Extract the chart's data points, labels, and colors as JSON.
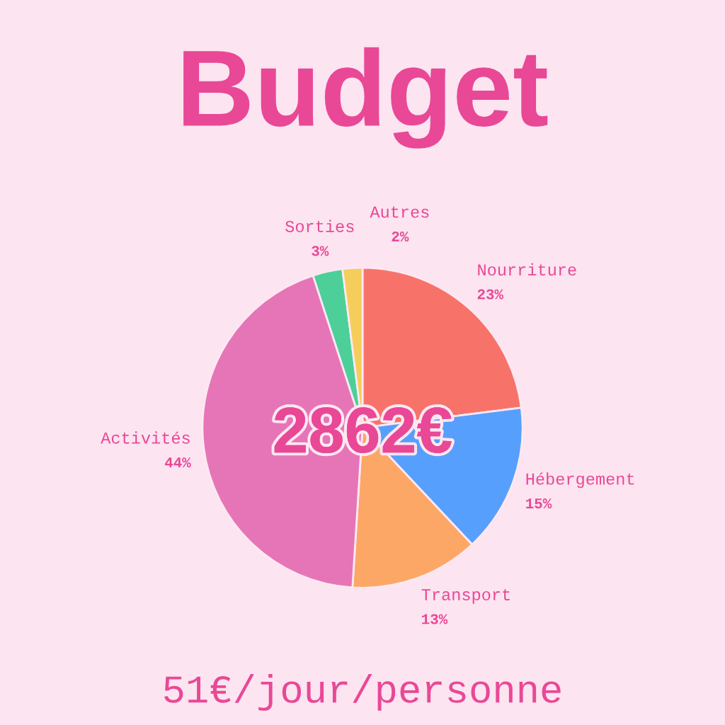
{
  "chart_data": {
    "type": "pie",
    "title": "Budget",
    "categories": [
      "Nourriture",
      "Hébergement",
      "Transport",
      "Activités",
      "Sorties",
      "Autres"
    ],
    "values": [
      23,
      15,
      13,
      44,
      3,
      2
    ],
    "value_labels": [
      "23%",
      "15%",
      "13%",
      "44%",
      "3%",
      "2%"
    ],
    "colors": [
      "#f7736a",
      "#579ffc",
      "#fda766",
      "#e675b7",
      "#4ccf99",
      "#f5cd5a"
    ],
    "annotations": [
      "2862€",
      "51€/jour/personne"
    ]
  }
}
